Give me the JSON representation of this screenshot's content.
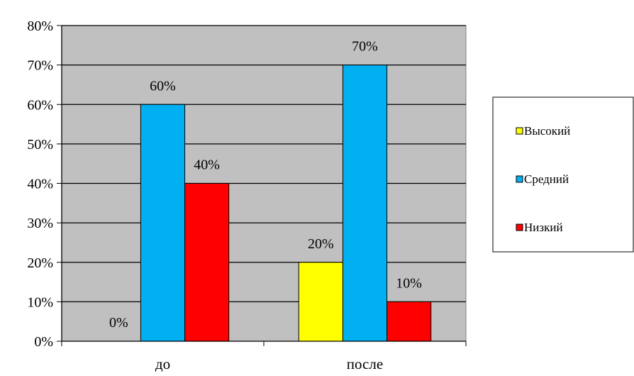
{
  "chart_data": {
    "type": "bar",
    "title": "",
    "xlabel": "",
    "ylabel": "",
    "categories": [
      "до",
      "после"
    ],
    "series": [
      {
        "name": "Высокий",
        "values": [
          0,
          20
        ],
        "color": "#ffff00"
      },
      {
        "name": "Средний",
        "values": [
          60,
          70
        ],
        "color": "#00b0f0"
      },
      {
        "name": "Низкий",
        "values": [
          40,
          10
        ],
        "color": "#ff0000"
      }
    ],
    "data_labels": [
      [
        "0%",
        "20%"
      ],
      [
        "60%",
        "70%"
      ],
      [
        "40%",
        "10%"
      ]
    ],
    "ylim": [
      0,
      80
    ],
    "yticks": [
      0,
      10,
      20,
      30,
      40,
      50,
      60,
      70,
      80
    ],
    "ytick_labels": [
      "0%",
      "10%",
      "20%",
      "30%",
      "40%",
      "50%",
      "60%",
      "70%",
      "80%"
    ],
    "grid": true,
    "legend_position": "right",
    "plot_background": "#c0c0c0"
  }
}
